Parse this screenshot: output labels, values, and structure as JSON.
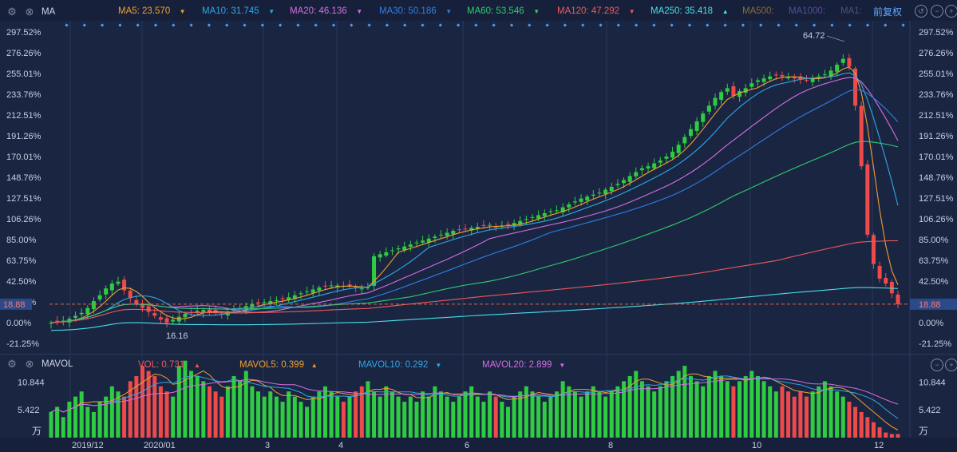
{
  "price_panel": {
    "indicator_name": "MA",
    "ma_items": [
      {
        "label": "MA5: 23.570",
        "color": "#f0a030",
        "arrow": "▼"
      },
      {
        "label": "MA10: 31.745",
        "color": "#2fa8e6",
        "arrow": "▼"
      },
      {
        "label": "MA20: 46.136",
        "color": "#d46fe0",
        "arrow": "▼"
      },
      {
        "label": "MA30: 50.186",
        "color": "#2f7fe6",
        "arrow": "▼"
      },
      {
        "label": "MA60: 53.546",
        "color": "#2ecc71",
        "arrow": "▼"
      },
      {
        "label": "MA120: 47.292",
        "color": "#ef5a5a",
        "arrow": "▼"
      },
      {
        "label": "MA250: 35.418",
        "color": "#45e0e8",
        "arrow": "▲"
      },
      {
        "label": "MA500:",
        "color": "#8a6a3a",
        "arrow": ""
      },
      {
        "label": "MA1000:",
        "color": "#5a4a9a",
        "arrow": ""
      },
      {
        "label": "MA1:",
        "color": "#4a5578",
        "arrow": ""
      }
    ],
    "adjust_label": "前复权",
    "high_label": "64.72",
    "low_label": "16.16",
    "current_price_label": "18.88"
  },
  "volume_panel": {
    "indicator_name": "MAVOL",
    "items": [
      {
        "label": "VOL: 0.731",
        "color": "#ef5a5a",
        "arrow": "▲"
      },
      {
        "label": "MAVOL5: 0.399",
        "color": "#f0a030",
        "arrow": "▲"
      },
      {
        "label": "MAVOL10: 0.292",
        "color": "#2fa8e6",
        "arrow": "▼"
      },
      {
        "label": "MAVOL20: 2.899",
        "color": "#d46fe0",
        "arrow": "▼"
      }
    ],
    "unit_label": "万"
  },
  "chart_data": [
    {
      "type": "candlestick",
      "yticks": [
        "297.52%",
        "276.26%",
        "255.01%",
        "233.76%",
        "212.51%",
        "191.26%",
        "170.01%",
        "148.76%",
        "127.51%",
        "106.26%",
        "85.00%",
        "63.75%",
        "42.50%",
        "21.25%",
        "0.00%",
        "-21.25%"
      ],
      "ylim": [
        -21.25,
        297.52
      ],
      "x_tick_labels": [
        "2019/12",
        "2020/01",
        "3",
        "4",
        "6",
        "8",
        "10",
        "12"
      ],
      "close_pct": [
        0,
        1,
        2,
        4,
        7,
        10,
        15,
        22,
        28,
        35,
        40,
        42,
        33,
        25,
        19,
        15,
        11,
        7,
        3,
        0,
        3,
        6,
        9,
        10,
        12,
        13,
        11,
        10,
        9,
        11,
        13,
        15,
        17,
        19,
        20,
        21,
        22,
        23,
        24,
        26,
        28,
        30,
        32,
        34,
        36,
        37,
        38,
        38,
        37,
        37,
        36,
        35,
        36,
        68,
        70,
        72,
        74,
        76,
        78,
        80,
        82,
        84,
        86,
        88,
        90,
        92,
        94,
        95,
        96,
        97,
        98,
        99,
        100,
        98,
        99,
        100,
        102,
        104,
        106,
        108,
        110,
        112,
        114,
        115,
        118,
        121,
        124,
        127,
        129,
        131,
        133,
        136,
        139,
        142,
        146,
        150,
        154,
        158,
        160,
        163,
        166,
        170,
        175,
        182,
        190,
        198,
        206,
        214,
        222,
        230,
        236,
        240,
        232,
        237,
        240,
        245,
        248,
        250,
        252,
        253,
        252,
        251,
        250,
        249,
        248,
        250,
        252,
        254,
        258,
        264,
        270,
        262,
        222,
        160,
        90,
        60,
        45,
        40,
        30,
        18.88
      ],
      "ma_series": [
        {
          "name": "MA5",
          "color": "#f0a030"
        },
        {
          "name": "MA10",
          "color": "#2fa8e6"
        },
        {
          "name": "MA20",
          "color": "#d46fe0"
        },
        {
          "name": "MA30",
          "color": "#2f7fe6"
        },
        {
          "name": "MA60",
          "color": "#2ecc71"
        },
        {
          "name": "MA120",
          "color": "#ef5a5a"
        },
        {
          "name": "MA250",
          "color": "#45e0e8"
        }
      ],
      "current_price": 18.88
    },
    {
      "type": "bar",
      "yticks": [
        "10.844",
        "5.422"
      ],
      "ylim": [
        0,
        17
      ],
      "volumes": [
        5,
        6,
        4,
        7,
        8,
        9,
        6,
        5,
        7,
        8,
        10,
        9,
        8,
        11,
        12,
        14,
        13,
        12,
        10,
        9,
        8,
        14,
        15,
        13,
        12,
        11,
        10,
        9,
        8,
        10,
        12,
        11,
        13,
        10,
        9,
        8,
        9,
        8,
        7,
        9,
        8,
        7,
        6,
        8,
        9,
        10,
        9,
        8,
        7,
        8,
        9,
        10,
        11,
        9,
        8,
        10,
        9,
        8,
        7,
        8,
        7,
        9,
        8,
        10,
        9,
        8,
        7,
        8,
        9,
        10,
        8,
        7,
        9,
        8,
        7,
        6,
        8,
        9,
        10,
        9,
        8,
        7,
        8,
        9,
        11,
        10,
        9,
        8,
        9,
        10,
        9,
        8,
        9,
        10,
        11,
        12,
        13,
        11,
        10,
        9,
        10,
        11,
        12,
        13,
        14,
        12,
        11,
        10,
        12,
        13,
        12,
        11,
        10,
        11,
        12,
        13,
        12,
        11,
        10,
        9,
        10,
        9,
        8,
        9,
        8,
        9,
        10,
        11,
        10,
        9,
        8,
        7,
        6,
        5,
        4,
        3,
        2,
        1,
        0.7,
        0.7
      ],
      "ma_colors": [
        "#f0a030",
        "#2fa8e6",
        "#d46fe0"
      ]
    }
  ]
}
